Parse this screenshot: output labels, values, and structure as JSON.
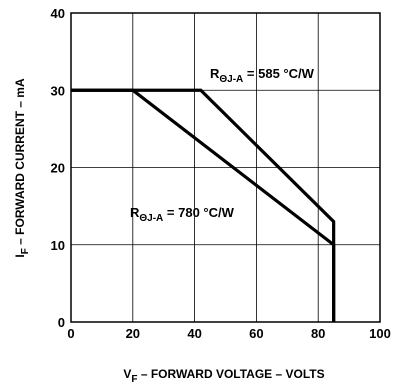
{
  "chart_data": {
    "type": "line",
    "xlabel": {
      "main": "V",
      "sub": "F",
      "rest": " – FORWARD VOLTAGE – VOLTS"
    },
    "ylabel": {
      "main": "I",
      "sub": "F",
      "rest": " – FORWARD CURRENT – mA"
    },
    "xlim": [
      0,
      100
    ],
    "ylim": [
      0,
      40
    ],
    "xticks": [
      "0",
      "20",
      "40",
      "60",
      "80",
      "100"
    ],
    "yticks": [
      "0",
      "10",
      "20",
      "30",
      "40"
    ],
    "grid": true,
    "series": [
      {
        "label": {
          "main": "R",
          "sub": "ΘJ-A",
          "rest": " = 585 °C/W"
        },
        "x": [
          0,
          42,
          85,
          85
        ],
        "y": [
          30,
          30,
          13,
          0
        ]
      },
      {
        "label": {
          "main": "R",
          "sub": "ΘJ-A",
          "rest": " = 780 °C/W"
        },
        "x": [
          0,
          20,
          85,
          85
        ],
        "y": [
          30,
          30,
          10,
          0
        ]
      }
    ]
  }
}
